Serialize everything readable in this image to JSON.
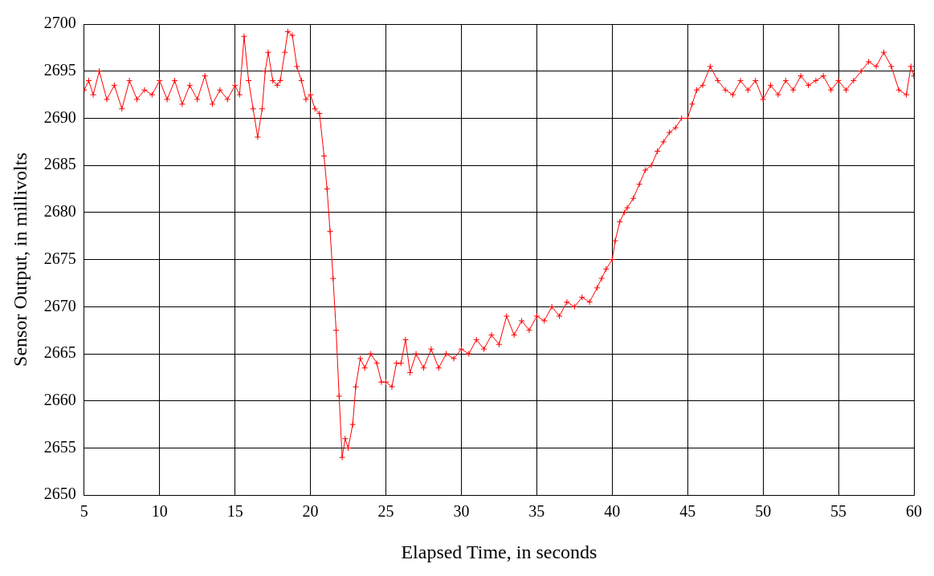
{
  "chart_data": {
    "type": "line",
    "xlabel": "Elapsed Time, in seconds",
    "ylabel": "Sensor Output, in millivolts",
    "color": "#ff0000",
    "marker": "cross",
    "line_style": "solid",
    "grid": true,
    "legend": false,
    "xlim": [
      5,
      60
    ],
    "xticks": [
      5,
      10,
      15,
      20,
      25,
      30,
      35,
      40,
      45,
      50,
      55,
      60
    ],
    "ylim": [
      2650,
      2700
    ],
    "yticks": [
      2650,
      2655,
      2660,
      2665,
      2670,
      2675,
      2680,
      2685,
      2690,
      2695,
      2700
    ],
    "x": [
      5,
      5.3,
      5.6,
      6,
      6.5,
      7,
      7.5,
      8,
      8.5,
      9,
      9.5,
      10,
      10.5,
      11,
      11.5,
      12,
      12.5,
      13,
      13.5,
      14,
      14.5,
      15,
      15.3,
      15.6,
      15.9,
      16.2,
      16.5,
      16.8,
      17,
      17.2,
      17.5,
      17.8,
      18,
      18.3,
      18.5,
      18.8,
      19.1,
      19.4,
      19.7,
      20,
      20.3,
      20.6,
      20.9,
      21.1,
      21.3,
      21.5,
      21.7,
      21.9,
      22.1,
      22.3,
      22.5,
      22.8,
      23,
      23.3,
      23.6,
      24,
      24.4,
      24.7,
      25,
      25.4,
      25.7,
      26,
      26.3,
      26.6,
      27,
      27.5,
      28,
      28.5,
      29,
      29.5,
      30,
      30.5,
      31,
      31.5,
      32,
      32.5,
      33,
      33.5,
      34,
      34.5,
      35,
      35.5,
      36,
      36.5,
      37,
      37.5,
      38,
      38.5,
      39,
      39.3,
      39.6,
      40,
      40.2,
      40.5,
      40.8,
      41,
      41.4,
      41.8,
      42.2,
      42.6,
      43,
      43.4,
      43.8,
      44.2,
      44.6,
      45,
      45.3,
      45.6,
      46,
      46.5,
      47,
      47.5,
      48,
      48.5,
      49,
      49.5,
      50,
      50.5,
      51,
      51.5,
      52,
      52.5,
      53,
      53.5,
      54,
      54.5,
      55,
      55.5,
      56,
      56.5,
      57,
      57.5,
      58,
      58.5,
      59,
      59.5,
      59.8,
      60
    ],
    "values": [
      2693,
      2694,
      2692.5,
      2695,
      2692,
      2693.5,
      2691,
      2694,
      2692,
      2693,
      2692.5,
      2694,
      2692,
      2694,
      2691.5,
      2693.5,
      2692,
      2694.5,
      2691.5,
      2693,
      2692,
      2693.5,
      2692.5,
      2698.7,
      2694,
      2691,
      2688,
      2691,
      2695,
      2697,
      2694,
      2693.5,
      2694,
      2697,
      2699.2,
      2698.8,
      2695.5,
      2694,
      2692,
      2692.5,
      2691,
      2690.5,
      2686,
      2682.5,
      2678,
      2673,
      2667.5,
      2660.5,
      2654,
      2656,
      2655,
      2657.5,
      2661.5,
      2664.5,
      2663.5,
      2665,
      2664,
      2662,
      2662,
      2661.5,
      2664,
      2664,
      2666.5,
      2663,
      2665,
      2663.5,
      2665.5,
      2663.5,
      2665,
      2664.5,
      2665.5,
      2665,
      2666.5,
      2665.5,
      2667,
      2666,
      2669,
      2667,
      2668.5,
      2667.5,
      2669,
      2668.5,
      2670,
      2669,
      2670.5,
      2670,
      2671,
      2670.5,
      2672,
      2673,
      2674,
      2675,
      2677,
      2679,
      2680,
      2680.5,
      2681.5,
      2683,
      2684.5,
      2685,
      2686.5,
      2687.5,
      2688.5,
      2689,
      2690,
      2690,
      2691.5,
      2693,
      2693.5,
      2695.5,
      2694,
      2693,
      2692.5,
      2694,
      2693,
      2694,
      2692,
      2693.5,
      2692.5,
      2694,
      2693,
      2694.5,
      2693.5,
      2694,
      2694.5,
      2693,
      2694,
      2693,
      2694,
      2695,
      2696,
      2695.5,
      2697,
      2695.5,
      2693,
      2692.5,
      2695.5,
      2694.5
    ]
  }
}
